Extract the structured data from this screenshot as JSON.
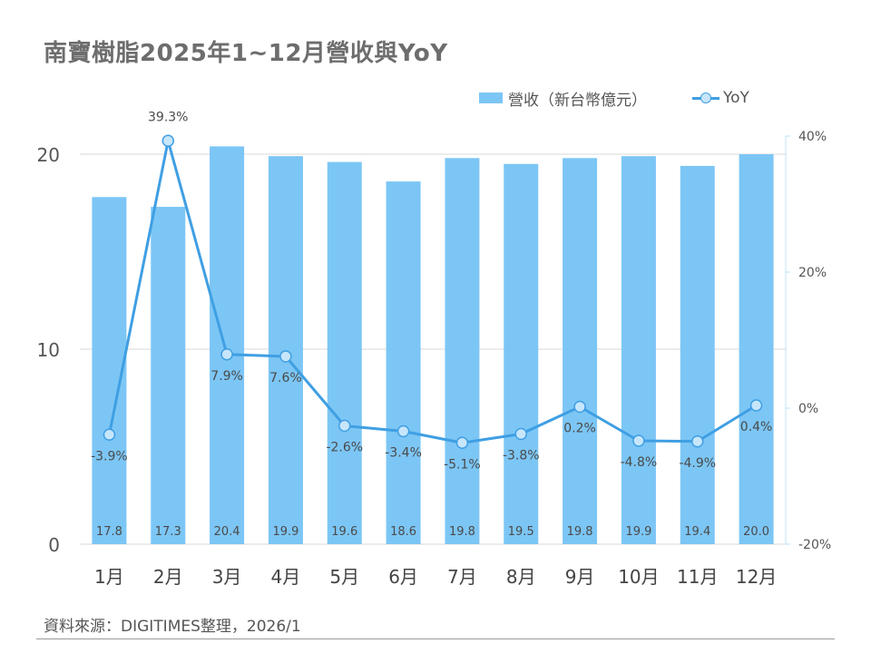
{
  "title": "南寶樹脂2025年1~12月營收與YoY",
  "source": "資料來源：DIGITIMES整理，2026/1",
  "colors": {
    "bar": "#7cc6f5",
    "line": "#3f9fe3",
    "marker_fill": "#c7e6fb",
    "grid": "#d9d9d9"
  },
  "chart_data": {
    "type": "bar+line",
    "title": "南寶樹脂2025年1~12月營收與YoY",
    "categories": [
      "1月",
      "2月",
      "3月",
      "4月",
      "5月",
      "6月",
      "7月",
      "8月",
      "9月",
      "10月",
      "11月",
      "12月"
    ],
    "series": [
      {
        "name": "營收（新台幣億元）",
        "type": "bar",
        "axis": "left",
        "values": [
          17.8,
          17.3,
          20.4,
          19.9,
          19.6,
          18.6,
          19.8,
          19.5,
          19.8,
          19.9,
          19.4,
          20.0
        ],
        "labels": [
          "17.8",
          "17.3",
          "20.4",
          "19.9",
          "19.6",
          "18.6",
          "19.8",
          "19.5",
          "19.8",
          "19.9",
          "19.4",
          "20.0"
        ]
      },
      {
        "name": "YoY",
        "type": "line",
        "axis": "right",
        "values": [
          -3.9,
          39.3,
          7.9,
          7.6,
          -2.6,
          -3.4,
          -5.1,
          -3.8,
          0.2,
          -4.8,
          -4.9,
          0.4
        ],
        "labels": [
          "-3.9%",
          "39.3%",
          "7.9%",
          "7.6%",
          "-2.6%",
          "-3.4%",
          "-5.1%",
          "-3.8%",
          "0.2%",
          "-4.8%",
          "-4.9%",
          "0.4%"
        ]
      }
    ],
    "y_left": {
      "range": [
        0,
        20
      ],
      "ticks": [
        0,
        10,
        20
      ],
      "tick_labels": [
        "0",
        "10",
        "20"
      ]
    },
    "y_right": {
      "range": [
        -20,
        40
      ],
      "ticks": [
        -20,
        0,
        20,
        40
      ],
      "tick_labels": [
        "-20%",
        "0%",
        "20%",
        "40%"
      ]
    },
    "grid": true,
    "legend_position": "top-right"
  }
}
